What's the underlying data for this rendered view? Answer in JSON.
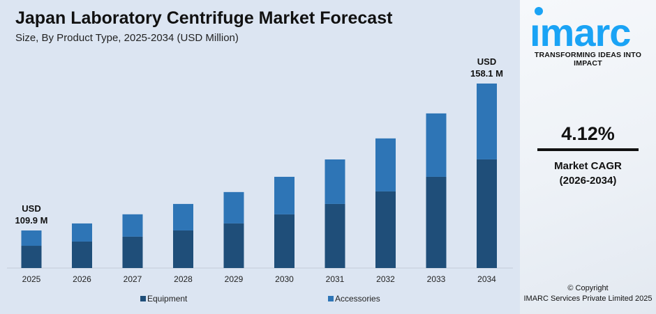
{
  "header": {
    "title": "Japan Laboratory Centrifuge Market Forecast",
    "subtitle": "Size, By Product Type, 2025-2034 (USD Million)"
  },
  "chart_data": {
    "type": "bar",
    "stacked": true,
    "title": "Japan Laboratory Centrifuge Market Forecast",
    "subtitle": "Size, By Product Type, 2025-2034 (USD Million)",
    "categories": [
      "2025",
      "2026",
      "2027",
      "2028",
      "2029",
      "2030",
      "2031",
      "2032",
      "2033",
      "2034"
    ],
    "series": [
      {
        "name": "Equipment",
        "color": "#1f4e79",
        "values": [
          65.1,
          66.6,
          67.3,
          69.6,
          71.9,
          75.0,
          78.6,
          82.8,
          87.5,
          93.1
        ]
      },
      {
        "name": "Accessories",
        "color": "#2e75b6",
        "values": [
          44.8,
          45.6,
          47.9,
          49.0,
          50.6,
          52.5,
          54.6,
          57.3,
          60.8,
          65.0
        ]
      }
    ],
    "totals": [
      109.9,
      112.2,
      115.2,
      118.6,
      122.5,
      127.5,
      133.2,
      140.1,
      148.3,
      158.1
    ],
    "annotations": [
      {
        "category": "2025",
        "line1": "USD",
        "line2": "109.9 M"
      },
      {
        "category": "2034",
        "line1": "USD",
        "line2": "158.1 M"
      }
    ],
    "legend_position": "bottom",
    "grid": false
  },
  "brand": {
    "logo_text": "imarc",
    "tagline": "TRANSFORMING IDEAS INTO IMPACT",
    "color": "#1aa3f5"
  },
  "cagr": {
    "value": "4.12%",
    "label": "Market CAGR",
    "period": "(2026-2034)"
  },
  "footer": {
    "copyright": "© Copyright",
    "company": "IMARC Services Private Limited 2025"
  }
}
